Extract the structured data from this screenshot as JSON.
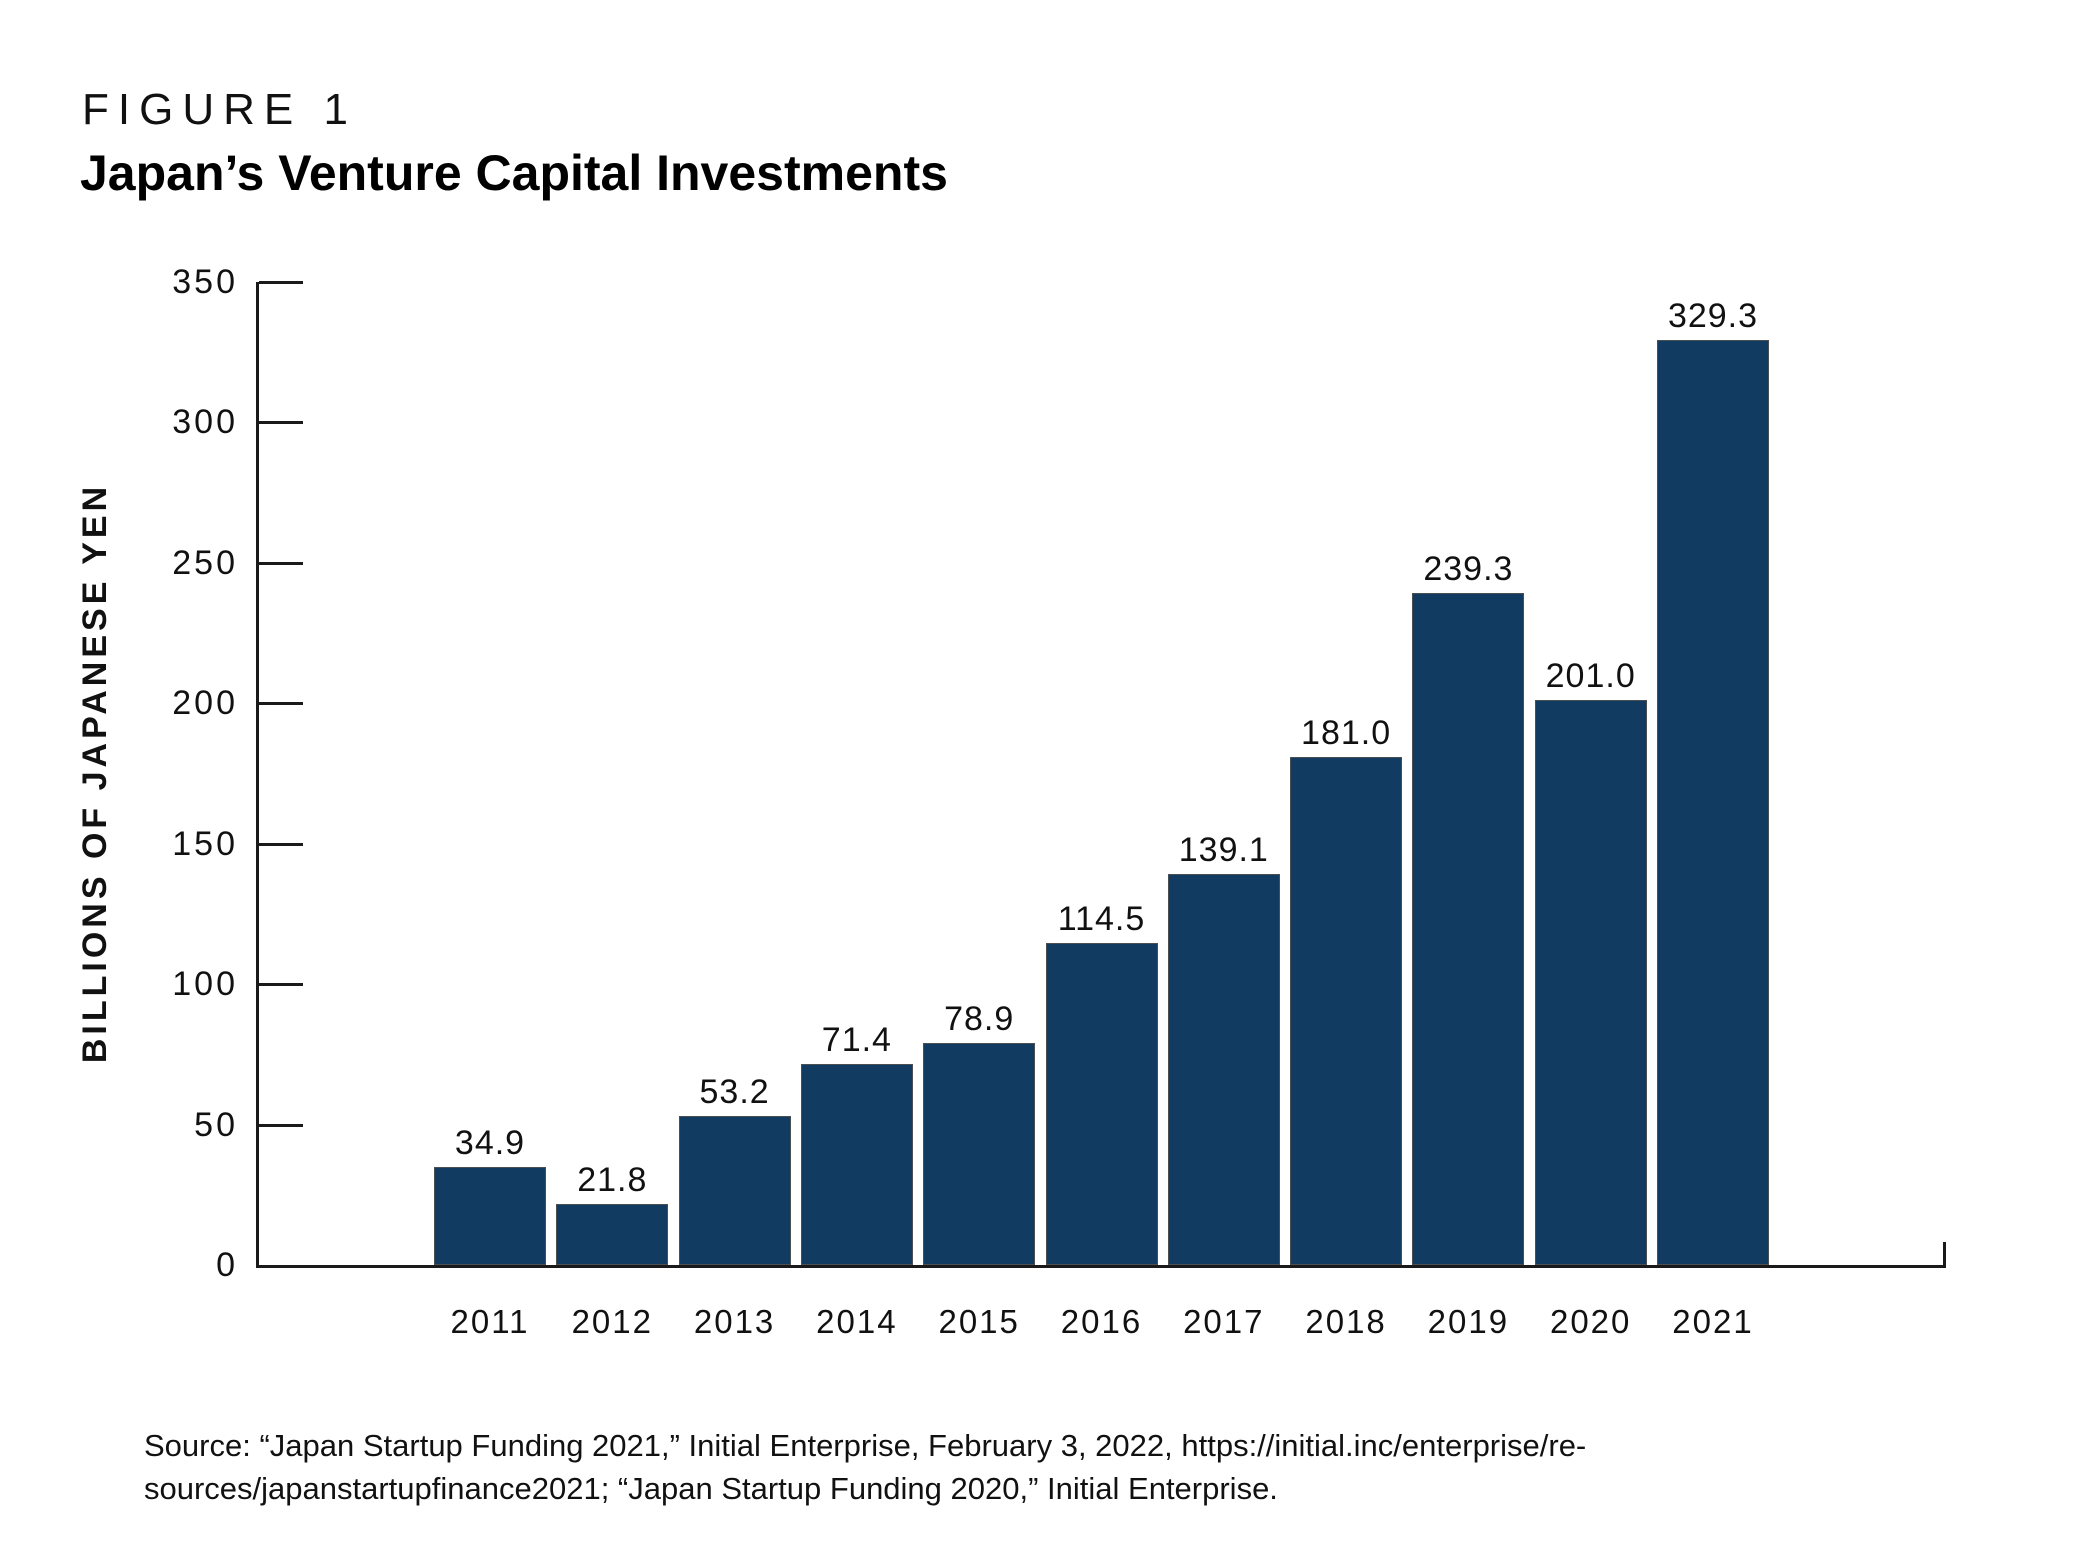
{
  "figure": {
    "kicker": "FIGURE 1",
    "title": "Japan’s Venture Capital Investments"
  },
  "chart_data": {
    "type": "bar",
    "title": "Japan’s Venture Capital Investments",
    "categories": [
      "2011",
      "2012",
      "2013",
      "2014",
      "2015",
      "2016",
      "2017",
      "2018",
      "2019",
      "2020",
      "2021"
    ],
    "values": [
      34.9,
      21.8,
      53.2,
      71.4,
      78.9,
      114.5,
      139.1,
      181.0,
      239.3,
      201.0,
      329.3
    ],
    "value_labels": [
      "34.9",
      "21.8",
      "53.2",
      "71.4",
      "78.9",
      "114.5",
      "139.1",
      "181.0",
      "239.3",
      "201.0",
      "329.3"
    ],
    "xlabel": "",
    "ylabel": "BILLIONS OF JAPANESE YEN",
    "ylim": [
      0,
      350
    ],
    "ytick_step": 50,
    "yticks": [
      0,
      50,
      100,
      150,
      200,
      250,
      300,
      350
    ],
    "grid": false,
    "legend": false,
    "data_labels_shown": true,
    "bar_color": "#123b61",
    "axis_color": "#1a1a1a"
  },
  "source": {
    "line1": "Source: “Japan Startup Funding 2021,” Initial Enterprise, February 3, 2022, https://initial.inc/enterprise/re-",
    "line2": "sources/japanstartupfinance2021; “Japan Startup Funding 2020,” Initial Enterprise."
  }
}
